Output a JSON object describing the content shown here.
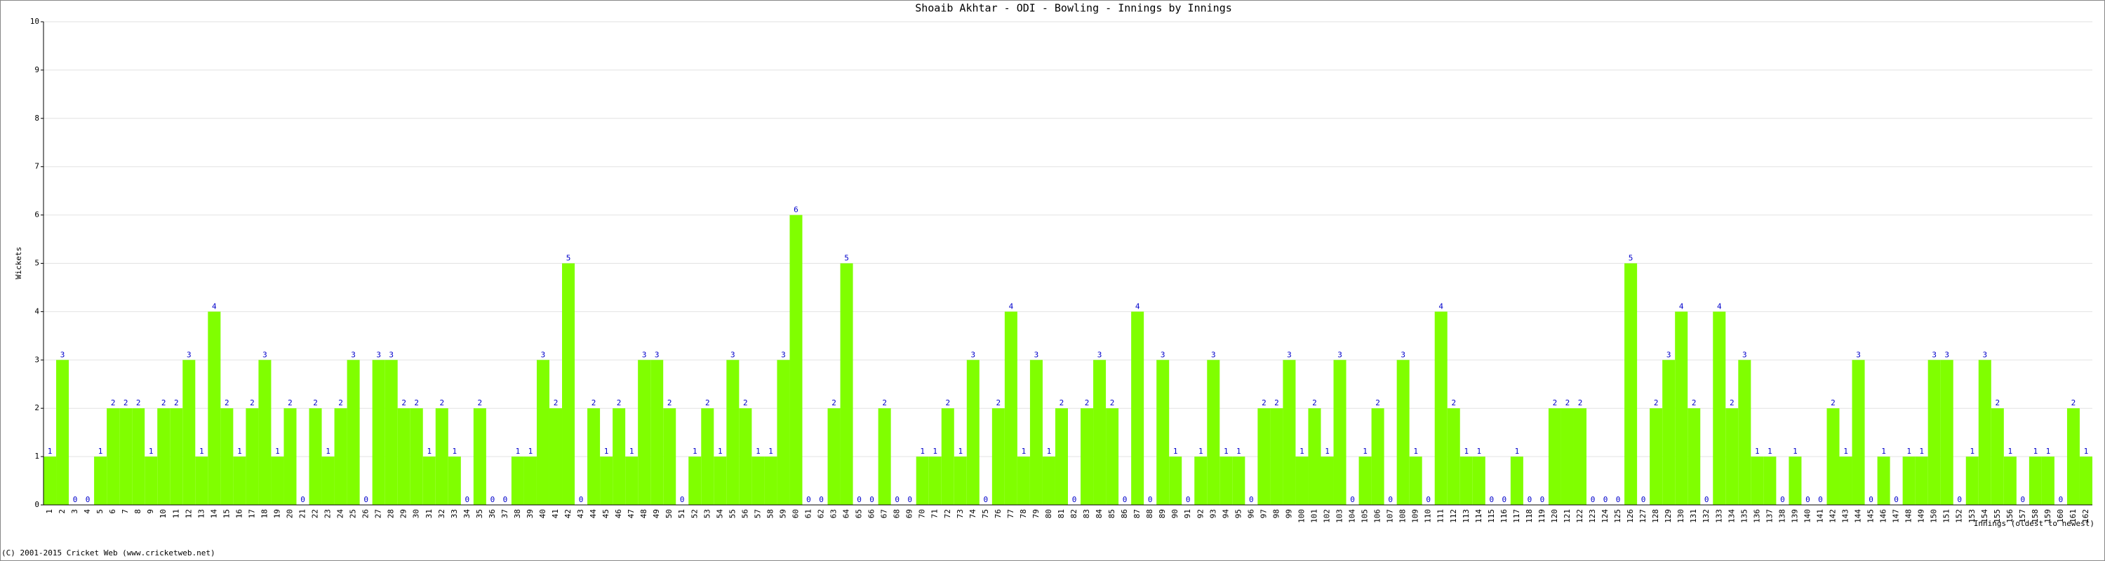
{
  "chart_data": {
    "type": "bar",
    "title": "Shoaib Akhtar - ODI - Bowling - Innings by Innings",
    "y_label": "Wickets",
    "x_label": "Innings (oldest to newest)",
    "footer": "(C) 2001-2015 Cricket Web (www.cricketweb.net)",
    "categories": [
      1,
      2,
      3,
      4,
      5,
      6,
      7,
      8,
      9,
      10,
      11,
      12,
      13,
      14,
      15,
      16,
      17,
      18,
      19,
      20,
      21,
      22,
      23,
      24,
      25,
      26,
      27,
      28,
      29,
      30,
      31,
      32,
      33,
      34,
      35,
      36,
      37,
      38,
      39,
      40,
      41,
      42,
      43,
      44,
      45,
      46,
      47,
      48,
      49,
      50,
      51,
      52,
      53,
      54,
      55,
      56,
      57,
      58,
      59,
      60,
      61,
      62,
      63,
      64,
      65,
      66,
      67,
      68,
      69,
      70,
      71,
      72,
      73,
      74,
      75,
      76,
      77,
      78,
      79,
      80,
      81,
      82,
      83,
      84,
      85,
      86,
      87,
      88,
      89,
      90,
      91,
      92,
      93,
      94,
      95,
      96,
      97,
      98,
      99,
      100,
      101,
      102,
      103,
      104,
      105,
      106,
      107,
      108,
      109,
      110,
      111,
      112,
      113,
      114,
      115,
      116,
      117,
      118,
      119,
      120,
      121,
      122,
      123,
      124,
      125,
      126,
      127,
      128,
      129,
      130,
      131,
      132,
      133,
      134,
      135,
      136,
      137,
      138,
      139,
      140,
      141,
      142,
      143,
      144,
      145,
      146,
      147,
      148,
      149,
      150,
      151,
      152,
      153,
      154,
      155,
      156,
      157,
      158,
      159,
      160,
      161,
      162
    ],
    "values": [
      1,
      3,
      0,
      0,
      1,
      2,
      2,
      2,
      1,
      2,
      2,
      3,
      1,
      4,
      2,
      1,
      2,
      3,
      1,
      2,
      0,
      2,
      1,
      2,
      3,
      0,
      3,
      3,
      2,
      2,
      1,
      2,
      1,
      0,
      2,
      0,
      0,
      1,
      1,
      3,
      2,
      5,
      0,
      2,
      1,
      2,
      1,
      3,
      3,
      2,
      0,
      1,
      2,
      1,
      3,
      2,
      1,
      1,
      3,
      6,
      0,
      0,
      2,
      5,
      0,
      0,
      2,
      0,
      0,
      1,
      1,
      2,
      1,
      3,
      0,
      2,
      4,
      1,
      3,
      1,
      2,
      0,
      2,
      3,
      2,
      0,
      4,
      0,
      3,
      1,
      0,
      1,
      3,
      1,
      1,
      0,
      2,
      2,
      3,
      1,
      2,
      1,
      3,
      0,
      1,
      2,
      0,
      3,
      1,
      0,
      4,
      2,
      1,
      1,
      0,
      0,
      1,
      0,
      0,
      2,
      2,
      2,
      0,
      0,
      0,
      5,
      0,
      2,
      3,
      4,
      2,
      0,
      4,
      2,
      3,
      1,
      1,
      0,
      1,
      0,
      0,
      2,
      1,
      3,
      0,
      1,
      0,
      1,
      1,
      3,
      3,
      0,
      1,
      3,
      2,
      1,
      0,
      1,
      1,
      0,
      2,
      1
    ],
    "color": "#80ff00",
    "label_color": "#0000cc",
    "ylim": [
      0,
      10
    ],
    "yticks": [
      0,
      1,
      2,
      3,
      4,
      5,
      6,
      7,
      8,
      9,
      10
    ],
    "grid": true
  }
}
